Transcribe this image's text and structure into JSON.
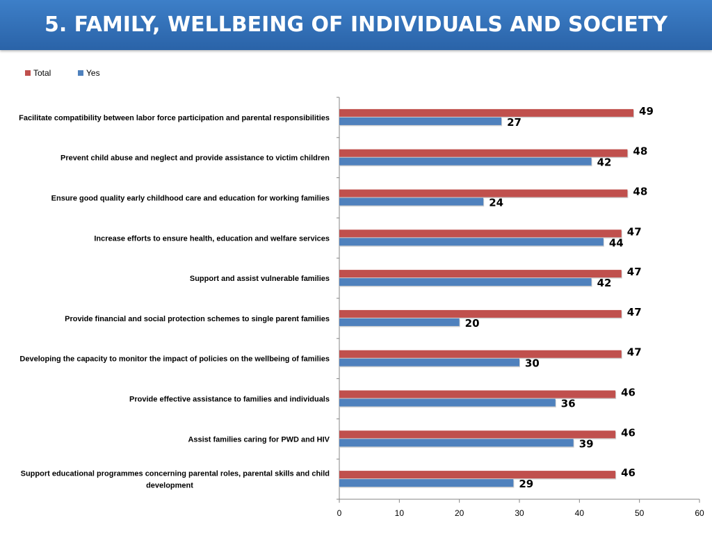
{
  "header": {
    "title": "5. FAMILY, WELLBEING OF INDIVIDUALS AND SOCIETY"
  },
  "colors": {
    "total": "#c0504d",
    "yes": "#4f81bd",
    "header": "#3470b8"
  },
  "chart_data": {
    "type": "bar",
    "orientation": "horizontal",
    "title": "",
    "xlabel": "",
    "ylabel": "",
    "xlim": [
      0,
      60
    ],
    "xticks": [
      0,
      10,
      20,
      30,
      40,
      50,
      60
    ],
    "grid": false,
    "legend": "top-left",
    "categories": [
      "Facilitate compatibility between labor force participation and parental responsibilities",
      "Prevent child abuse and neglect and provide assistance to victim children",
      "Ensure good quality early childhood care and education  for working families",
      "Increase efforts to ensure health, education and welfare services",
      "Support and assist vulnerable families",
      "Provide financial and social protection schemes to single parent families",
      "Developing the capacity to monitor the impact of policies  on the wellbeing of families",
      "Provide effective assistance to families and individuals",
      "Assist families caring for PWD and HIV",
      "Support educational programmes concerning parental roles, parental skills and child development"
    ],
    "series": [
      {
        "name": "Total",
        "values": [
          49,
          48,
          48,
          47,
          47,
          47,
          47,
          46,
          46,
          46
        ]
      },
      {
        "name": "Yes",
        "values": [
          27,
          42,
          24,
          44,
          42,
          20,
          30,
          36,
          39,
          29
        ]
      }
    ]
  }
}
